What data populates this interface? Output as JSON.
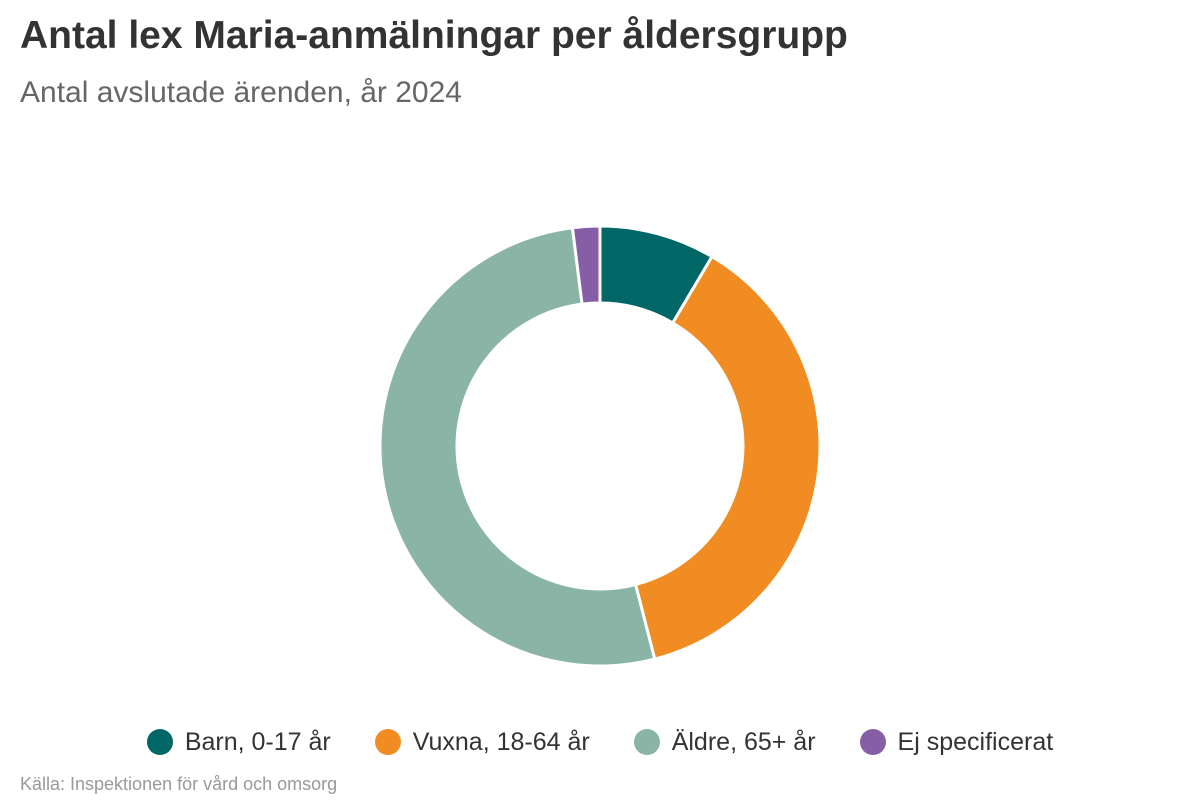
{
  "chart_data": {
    "type": "pie",
    "variant": "donut",
    "title": "Antal lex Maria-anmälningar per åldersgrupp",
    "subtitle": "Antal avslutade ärenden, år 2024",
    "source": "Källa: Inspektionen för vård och omsorg",
    "unit": "%",
    "legend_position": "bottom",
    "slices": [
      {
        "label": "Barn, 0-17 år",
        "value": 8.5,
        "color": "#006666"
      },
      {
        "label": "Vuxna, 18-64 år",
        "value": 37.5,
        "color": "#f08c21"
      },
      {
        "label": "Äldre, 65+ år",
        "value": 52,
        "color": "#8ab4a6"
      },
      {
        "label": "Ej specificerat",
        "value": 2,
        "color": "#865ea6"
      }
    ]
  }
}
